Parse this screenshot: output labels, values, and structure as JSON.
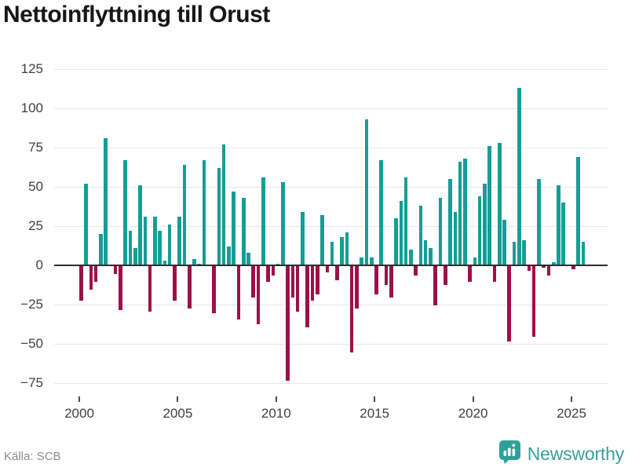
{
  "header": {
    "title": "Nettoinflyttning till Orust"
  },
  "footer": {
    "source": "Källa: SCB",
    "brand": "Newsworthy"
  },
  "chart_data": {
    "type": "bar",
    "title": "Nettoinflyttning till Orust",
    "frequency": "quarterly",
    "start_year": 2000,
    "values": [
      -22,
      52,
      -15,
      -10,
      20,
      81,
      0,
      -5,
      -28,
      67,
      22,
      11,
      51,
      31,
      -29,
      31,
      22,
      3,
      26,
      -22,
      31,
      64,
      -27,
      4,
      1,
      67,
      0,
      -30,
      62,
      77,
      12,
      47,
      -34,
      43,
      8,
      -20,
      -37,
      56,
      -10,
      -6,
      1,
      53,
      -73,
      -20,
      -29,
      34,
      -39,
      -22,
      -18,
      32,
      -4,
      15,
      -9,
      18,
      21,
      -55,
      -27,
      5,
      93,
      5,
      -18,
      67,
      -12,
      -20,
      30,
      41,
      56,
      10,
      -6,
      38,
      16,
      11,
      -25,
      43,
      -12,
      55,
      34,
      66,
      68,
      -10,
      5,
      44,
      52,
      76,
      -10,
      78,
      29,
      -48,
      15,
      113,
      16,
      -3,
      -45,
      55,
      -1,
      -6,
      2,
      51,
      40,
      0,
      -2,
      69,
      15
    ],
    "x_tick_labels": [
      "2000",
      "2005",
      "2010",
      "2015",
      "2020",
      "2025"
    ],
    "x_tick_step_quarters": 20,
    "y_ticks": [
      125,
      100,
      75,
      50,
      25,
      0,
      -25,
      -50,
      -75
    ],
    "ylim": [
      -85,
      130
    ],
    "grid": true,
    "legend": "none",
    "positive_color": "#149e96",
    "negative_color": "#9c104a",
    "zero_line_color": "#2e2e2e",
    "grid_color": "#e7e7e7",
    "source": "Källa: SCB"
  }
}
